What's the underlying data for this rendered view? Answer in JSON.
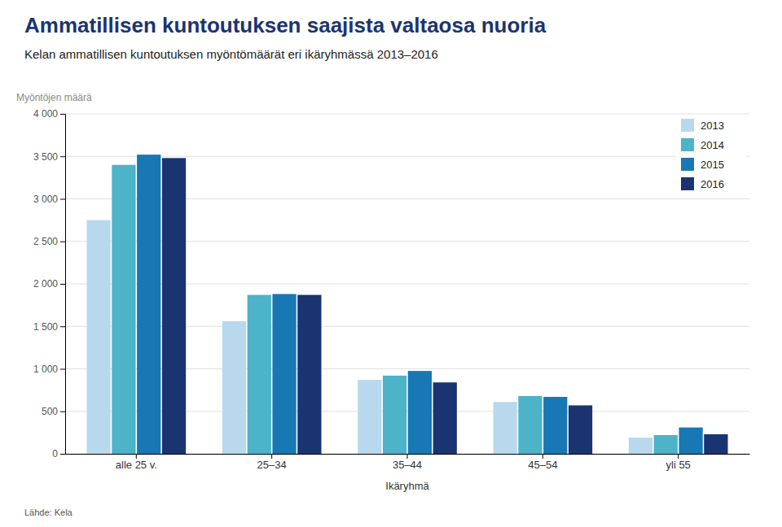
{
  "chart_data": {
    "type": "bar",
    "title": "Ammatillisen kuntoutuksen saajista valtaosa nuoria",
    "subtitle": "Kelan ammatillisen kuntoutuksen myöntömäärät eri ikäryhmässä 2013–2016",
    "x_label": "Ikäryhmä",
    "y_label": "Myöntöjen määrä",
    "source": "Lähde: Kela",
    "categories": [
      "alle 25 v.",
      "25–34",
      "35–44",
      "45–54",
      "yli 55"
    ],
    "series": [
      {
        "name": "2013",
        "color": "#b8d9ed",
        "values": [
          2750,
          1560,
          870,
          610,
          190
        ]
      },
      {
        "name": "2014",
        "color": "#4db3c8",
        "values": [
          3400,
          1870,
          920,
          680,
          220
        ]
      },
      {
        "name": "2015",
        "color": "#1878b4",
        "values": [
          3520,
          1880,
          975,
          670,
          310
        ]
      },
      {
        "name": "2016",
        "color": "#1a3472",
        "values": [
          3480,
          1870,
          840,
          570,
          230
        ]
      }
    ],
    "ylim": [
      0,
      4000
    ],
    "yticks": [
      0,
      500,
      {
        "value": 1000,
        "label": "1 000"
      },
      {
        "value": 1500,
        "label": "1 500"
      },
      {
        "value": 2000,
        "label": "2 000"
      },
      {
        "value": 2500,
        "label": "2 500"
      },
      {
        "value": 3000,
        "label": "3 000"
      },
      {
        "value": 3500,
        "label": "3 500"
      },
      {
        "value": 4000,
        "label": "4 000"
      }
    ],
    "grid": true,
    "legend": "upper right"
  }
}
